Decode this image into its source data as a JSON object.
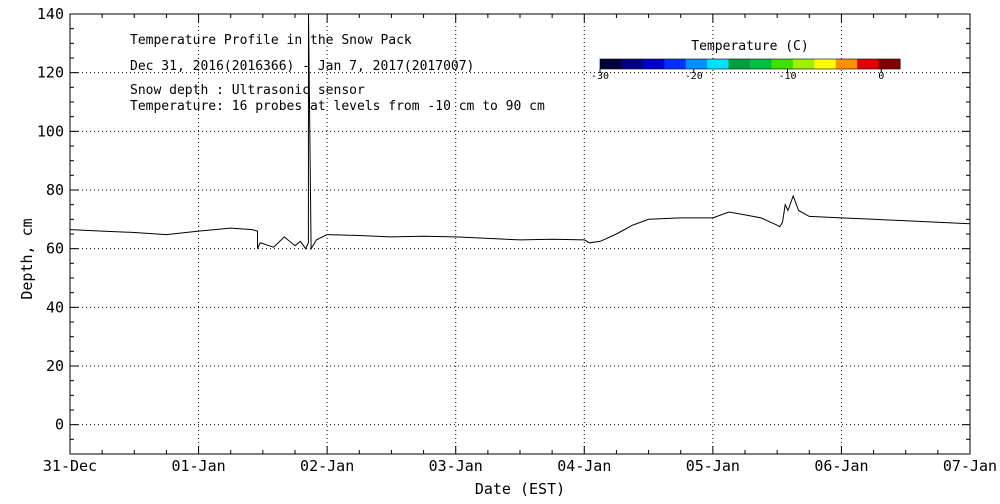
{
  "chart_data": {
    "type": "line",
    "title": "Temperature Profile in the Snow Pack",
    "subtitle": "Dec 31, 2016(2016366) - Jan  7, 2017(2017007)",
    "annotations": [
      "Snow depth : Ultrasonic sensor",
      "Temperature: 16 probes at levels from -10 cm to 90 cm"
    ],
    "xlabel": "Date (EST)",
    "ylabel": "Depth, cm",
    "x_tick_labels": [
      "31-Dec",
      "01-Jan",
      "02-Jan",
      "03-Jan",
      "04-Jan",
      "05-Jan",
      "06-Jan",
      "07-Jan"
    ],
    "xlim": [
      "2016-12-31",
      "2017-01-07"
    ],
    "y_ticks": [
      0,
      20,
      40,
      60,
      80,
      100,
      120,
      140
    ],
    "ylim": [
      -10,
      140
    ],
    "grid": true,
    "colorbar": {
      "title": "Temperature (C)",
      "tick_labels": [
        "-30",
        "-20",
        "-10",
        "0"
      ],
      "range": [
        -30,
        2
      ],
      "colors": [
        "#00003a",
        "#000080",
        "#0000c8",
        "#0030ff",
        "#0090ff",
        "#00e0ff",
        "#00a040",
        "#00c040",
        "#40e000",
        "#a0f000",
        "#ffff00",
        "#ff9000",
        "#e00000",
        "#800000"
      ]
    },
    "series": [
      {
        "color": "#000000",
        "x": [
          "2016-12-31 00:00",
          "2016-12-31 06:00",
          "2016-12-31 12:00",
          "2016-12-31 18:00",
          "2017-01-01 00:00",
          "2017-01-01 06:00",
          "2017-01-01 10:00",
          "2017-01-01 11:00",
          "2017-01-01 11:01",
          "2017-01-01 11:30",
          "2017-01-01 14:00",
          "2017-01-01 16:00",
          "2017-01-01 18:00",
          "2017-01-01 19:00",
          "2017-01-01 20:00",
          "2017-01-01 20:30",
          "2017-01-01 20:31",
          "2017-01-01 21:00",
          "2017-01-01 22:00",
          "2017-01-02 00:00",
          "2017-01-02 06:00",
          "2017-01-02 12:00",
          "2017-01-02 18:00",
          "2017-01-03 00:00",
          "2017-01-03 06:00",
          "2017-01-03 12:00",
          "2017-01-03 18:00",
          "2017-01-04 00:00",
          "2017-01-04 01:00",
          "2017-01-04 03:00",
          "2017-01-04 06:00",
          "2017-01-04 09:00",
          "2017-01-04 12:00",
          "2017-01-04 18:00",
          "2017-01-05 00:00",
          "2017-01-05 03:00",
          "2017-01-05 06:00",
          "2017-01-05 09:00",
          "2017-01-05 12:00",
          "2017-01-05 12:30",
          "2017-01-05 13:00",
          "2017-01-05 13:30",
          "2017-01-05 14:00",
          "2017-01-05 15:00",
          "2017-01-05 16:00",
          "2017-01-05 18:00",
          "2017-01-06 00:00",
          "2017-01-06 06:00",
          "2017-01-06 12:00",
          "2017-01-06 18:00",
          "2017-01-07 00:00"
        ],
        "y": [
          66.5,
          66,
          65.5,
          64.8,
          66,
          67,
          66.5,
          66,
          60,
          62,
          60.5,
          64,
          61,
          62.5,
          60,
          62,
          140,
          60,
          63,
          64.8,
          64.5,
          64,
          64.2,
          64,
          63.5,
          63,
          63.2,
          63,
          62,
          62.5,
          65,
          68,
          70,
          70.5,
          70.5,
          72.5,
          71.5,
          70.5,
          68,
          67.5,
          69,
          75,
          73,
          78,
          73,
          71,
          70.5,
          70,
          69.5,
          69,
          68.5
        ]
      }
    ]
  }
}
